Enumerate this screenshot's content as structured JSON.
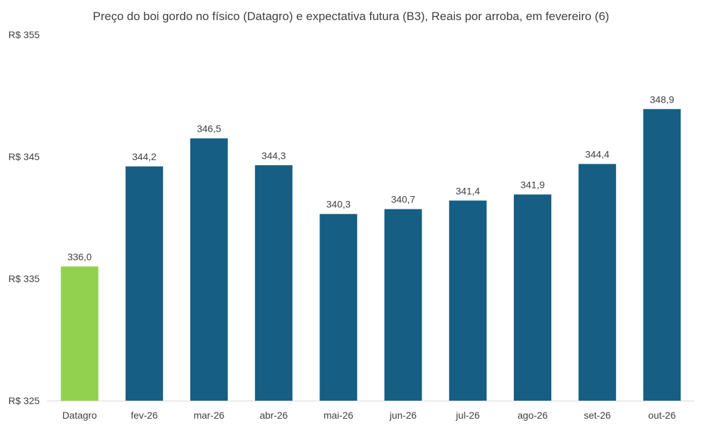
{
  "chart_data": {
    "type": "bar",
    "title": "Preço do boi gordo no físico (Datagro)  e expectativa futura (B3), Reais por arroba, em fevereiro (6)",
    "xlabel": "",
    "ylabel": "",
    "ylim": [
      325,
      355
    ],
    "yticks": [
      325,
      335,
      345,
      355
    ],
    "ytick_labels": [
      "R$ 325",
      "R$ 335",
      "R$ 345",
      "R$ 355"
    ],
    "categories": [
      "Datagro",
      "fev-26",
      "mar-26",
      "abr-26",
      "mai-26",
      "jun-26",
      "jul-26",
      "ago-26",
      "set-26",
      "out-26"
    ],
    "values": [
      336.0,
      344.2,
      346.5,
      344.3,
      340.3,
      340.7,
      341.4,
      341.9,
      344.4,
      348.9
    ],
    "value_labels": [
      "336,0",
      "344,2",
      "346,5",
      "344,3",
      "340,3",
      "340,7",
      "341,4",
      "341,9",
      "344,4",
      "348,9"
    ],
    "bar_colors": [
      "#92d050",
      "#165e83",
      "#165e83",
      "#165e83",
      "#165e83",
      "#165e83",
      "#165e83",
      "#165e83",
      "#165e83",
      "#165e83"
    ],
    "grid": false,
    "legend": "none"
  },
  "colors": {
    "axis": "#d9d9d9",
    "text": "#404040"
  }
}
